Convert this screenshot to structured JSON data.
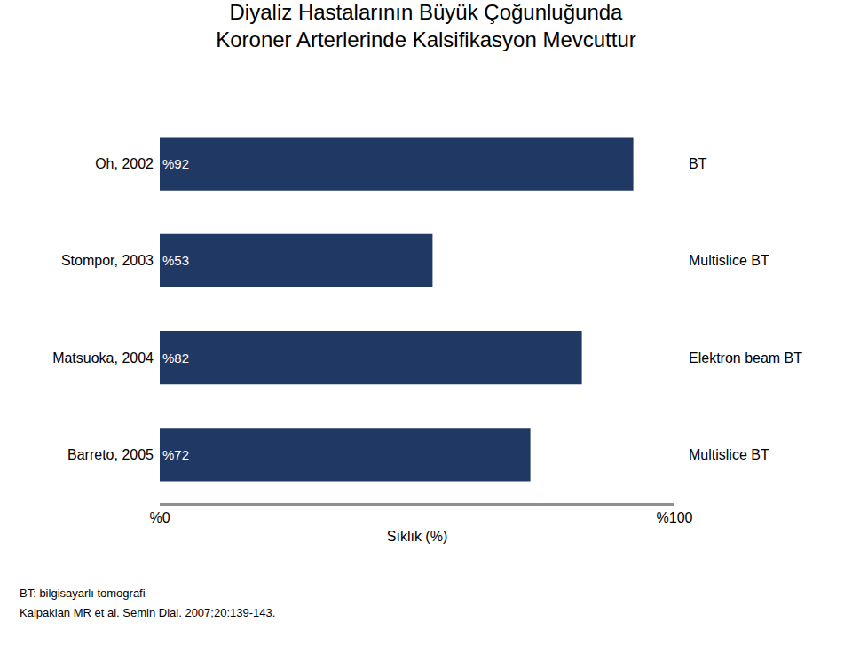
{
  "chart_data": {
    "type": "bar",
    "orientation": "horizontal",
    "title": "Diyaliz Hastalarının Büyük Çoğunluğunda",
    "subtitle": "Koroner Arterlerinde Kalsifikasyon Mevcuttur",
    "categories": [
      "Oh, 2002",
      "Stompor, 2003",
      "Matsuoka, 2004",
      "Barreto, 2005"
    ],
    "values": [
      92,
      53,
      82,
      72
    ],
    "value_labels": [
      "%92",
      "%53",
      "%82",
      "%72"
    ],
    "data_labels": true,
    "color": "#1F3864",
    "annotations": [
      "BT",
      "Multislice BT",
      "Elektron beam BT",
      "Multislice BT"
    ],
    "xlabel": "Sıklık (%)",
    "xlim": [
      0,
      100
    ],
    "xticks": [
      {
        "value": 0,
        "label": "%0"
      },
      {
        "value": 100,
        "label": "%100"
      }
    ],
    "grid": false,
    "footnotes": [
      "BT: bilgisayarlı tomografi",
      "Kalpakian MR et al. Semin Dial. 2007;20:139-143."
    ]
  }
}
